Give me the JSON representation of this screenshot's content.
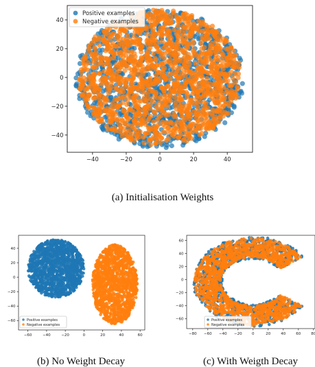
{
  "colors": {
    "positive": "#1f77b4",
    "negative": "#ff7f0e"
  },
  "captions": {
    "a": "(a)  Initialisation Weights",
    "b": "(b)  No Weight Decay",
    "c": "(c)  With Weigth Decay"
  },
  "chart_data": [
    {
      "type": "scatter",
      "title": "",
      "xlabel": "",
      "ylabel": "",
      "xlim": [
        -55,
        55
      ],
      "ylim": [
        -52,
        50
      ],
      "xticks": [
        -40,
        -20,
        0,
        20,
        40
      ],
      "yticks": [
        -40,
        -20,
        0,
        20,
        40
      ],
      "legend": [
        "Positive examples",
        "Negative examples"
      ],
      "legend_placement": "top-left",
      "series": [
        {
          "name": "Positive examples",
          "cluster": {
            "cx": 0,
            "cy": -1,
            "rx": 50,
            "ry": 48
          }
        },
        {
          "name": "Negative examples",
          "cluster": {
            "cx": 0,
            "cy": 0,
            "rx": 48,
            "ry": 47
          }
        }
      ]
    },
    {
      "type": "scatter",
      "title": "",
      "xlabel": "",
      "ylabel": "",
      "xlim": [
        -70,
        65
      ],
      "ylim": [
        -73,
        58
      ],
      "xticks": [
        -60,
        -40,
        -20,
        0,
        20,
        40,
        60
      ],
      "yticks": [
        -60,
        -40,
        -20,
        0,
        20,
        40
      ],
      "legend": [
        "Positive examples",
        "Negative examples"
      ],
      "legend_placement": "bottom-left",
      "series": [
        {
          "name": "Positive examples",
          "cluster": {
            "cx": -30,
            "cy": 12,
            "rx": 30,
            "ry": 40
          }
        },
        {
          "name": "Negative examples",
          "cluster": {
            "cx": 33,
            "cy": -10,
            "rx": 24,
            "ry": 55
          }
        }
      ]
    },
    {
      "type": "scatter",
      "title": "",
      "xlabel": "",
      "ylabel": "",
      "xlim": [
        -88,
        82
      ],
      "ylim": [
        -75,
        68
      ],
      "xticks": [
        -80,
        -60,
        -40,
        -20,
        0,
        20,
        40,
        60,
        80
      ],
      "yticks": [
        -60,
        -40,
        -20,
        0,
        20,
        40,
        60
      ],
      "legend": [
        "Positive examples",
        "Negative examples"
      ],
      "legend_placement": "bottom-center",
      "series": [
        {
          "name": "Positive examples",
          "cluster": {
            "shape": "C-band",
            "cx": 0,
            "cy": -3,
            "r_outer": 78,
            "r_inner": 40
          }
        },
        {
          "name": "Negative examples",
          "cluster": {
            "shape": "C-band",
            "cx": 0,
            "cy": -3,
            "r_outer": 76,
            "r_inner": 42
          }
        }
      ]
    }
  ]
}
